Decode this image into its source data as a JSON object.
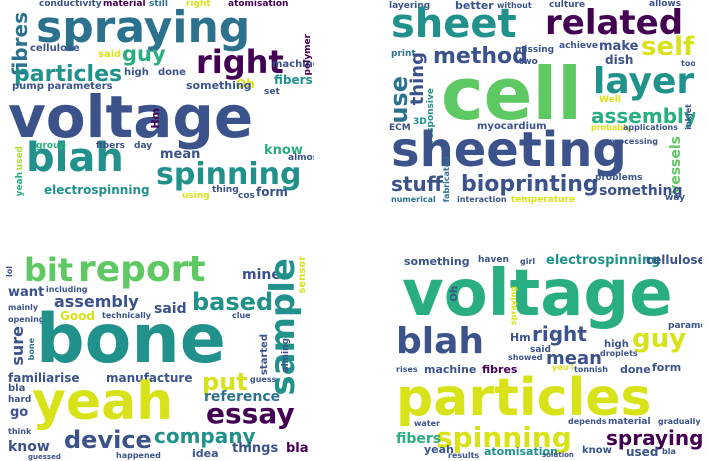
{
  "clouds": [
    {
      "name": "cloud-top-left",
      "words": [
        "conductivity",
        "material",
        "still",
        "right",
        "atomisation",
        "spraying",
        "fibres",
        "cellulose",
        "said",
        "guy",
        "right",
        "particles",
        "high",
        "done",
        "machine",
        "pump parameters",
        "Oh",
        "fibers",
        "set",
        "polymer",
        "voltage",
        "Hm",
        "something",
        "blah",
        "group",
        "day",
        "mean",
        "know",
        "almost",
        "fibers",
        "spinning",
        "used",
        "yeah",
        "electrospinning",
        "thing",
        "cos",
        "form",
        "using"
      ]
    },
    {
      "name": "cloud-top-right",
      "words": [
        "layering",
        "better",
        "without",
        "culture",
        "allows",
        "sheet",
        "related",
        "print",
        "use",
        "thing",
        "missing",
        "achieve",
        "make",
        "self",
        "method",
        "two",
        "dish",
        "too",
        "cell",
        "layer",
        "ECM",
        "3D",
        "responsive",
        "myocardium",
        "Well",
        "probably",
        "applications",
        "assembly",
        "sheeting",
        "processing",
        "inkjet",
        "vessels",
        "stuff",
        "fabricated",
        "bioprinting",
        "problems",
        "something",
        "numerical",
        "interaction",
        "temperature",
        "way"
      ]
    },
    {
      "name": "cloud-bottom-left",
      "words": [
        "bit",
        "report",
        "mine",
        "sensor",
        "want",
        "lol",
        "including",
        "assembly",
        "based",
        "sample",
        "mainly",
        "Good",
        "technically",
        "clue",
        "opening",
        "bone",
        "said",
        "sure",
        "aiming",
        "bone",
        "started",
        "familiarise",
        "manufacture",
        "put",
        "guess",
        "bla",
        "yeah",
        "reference",
        "hard",
        "essay",
        "go",
        "think",
        "device",
        "company",
        "things",
        "bla",
        "know",
        "guessed",
        "happened",
        "idea"
      ]
    },
    {
      "name": "cloud-bottom-right",
      "words": [
        "something",
        "haven",
        "girl",
        "electrospinning",
        "cellulose",
        "voltage",
        "Oh",
        "spraying",
        "blah",
        "Hm",
        "right",
        "guy",
        "parameters",
        "high",
        "droplets",
        "said",
        "showed",
        "mean",
        "you'l",
        "tonnish",
        "done",
        "form",
        "rises",
        "machine",
        "fibres",
        "particles",
        "water",
        "depends",
        "material",
        "gradually",
        "spinning",
        "fibers",
        "yeah",
        "results",
        "atomisation",
        "solution",
        "know",
        "spraying",
        "used",
        "bla"
      ]
    }
  ],
  "colors": {
    "dark_purple": "#440154",
    "indigo": "#3b528b",
    "blue": "#2c728e",
    "teal": "#21918c",
    "green": "#28ae80",
    "light_green": "#5ec962",
    "lime": "#addc30",
    "yellow": "#d8e219"
  }
}
